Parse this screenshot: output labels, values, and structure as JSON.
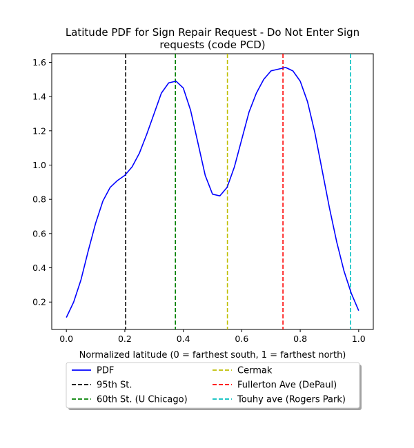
{
  "chart_data": {
    "type": "line",
    "title_line1": "Latitude PDF for Sign Repair Request - Do Not Enter Sign",
    "title_line2": "requests (code PCD)",
    "xlabel": "Normalized latitude (0 = farthest south, 1 = farthest north)",
    "ylabel": "",
    "xlim": [
      -0.05,
      1.05
    ],
    "ylim": [
      0.04,
      1.65
    ],
    "xticks": [
      0.0,
      0.2,
      0.4,
      0.6,
      0.8,
      1.0
    ],
    "xtick_labels": [
      "0.0",
      "0.2",
      "0.4",
      "0.6",
      "0.8",
      "1.0"
    ],
    "yticks": [
      0.2,
      0.4,
      0.6,
      0.8,
      1.0,
      1.2,
      1.4,
      1.6
    ],
    "ytick_labels": [
      "0.2",
      "0.4",
      "0.6",
      "0.8",
      "1.0",
      "1.2",
      "1.4",
      "1.6"
    ],
    "grid": false,
    "legend_position": "below plot, two columns",
    "series": [
      {
        "name": "PDF",
        "color": "#0000ff",
        "style": "solid",
        "x": [
          0.0,
          0.025,
          0.05,
          0.075,
          0.1,
          0.125,
          0.15,
          0.175,
          0.2,
          0.225,
          0.25,
          0.275,
          0.3,
          0.325,
          0.35,
          0.375,
          0.4,
          0.425,
          0.45,
          0.475,
          0.5,
          0.525,
          0.55,
          0.575,
          0.6,
          0.625,
          0.65,
          0.675,
          0.7,
          0.725,
          0.75,
          0.775,
          0.8,
          0.825,
          0.85,
          0.875,
          0.9,
          0.925,
          0.95,
          0.975,
          1.0
        ],
        "y": [
          0.11,
          0.2,
          0.33,
          0.5,
          0.66,
          0.79,
          0.87,
          0.91,
          0.94,
          0.99,
          1.07,
          1.18,
          1.3,
          1.42,
          1.48,
          1.49,
          1.45,
          1.32,
          1.13,
          0.94,
          0.83,
          0.82,
          0.87,
          0.99,
          1.15,
          1.31,
          1.42,
          1.5,
          1.55,
          1.56,
          1.57,
          1.55,
          1.49,
          1.37,
          1.19,
          0.97,
          0.75,
          0.55,
          0.38,
          0.25,
          0.15
        ]
      }
    ],
    "vlines": [
      {
        "name": "95th St.",
        "x": 0.203,
        "color": "#000000"
      },
      {
        "name": "60th St. (U Chicago)",
        "x": 0.373,
        "color": "#008000"
      },
      {
        "name": "Cermak",
        "x": 0.551,
        "color": "#bfbf00"
      },
      {
        "name": "Fullerton Ave (DePaul)",
        "x": 0.741,
        "color": "#ff0000"
      },
      {
        "name": "Touhy ave (Rogers Park)",
        "x": 0.972,
        "color": "#00bfbf"
      }
    ]
  }
}
